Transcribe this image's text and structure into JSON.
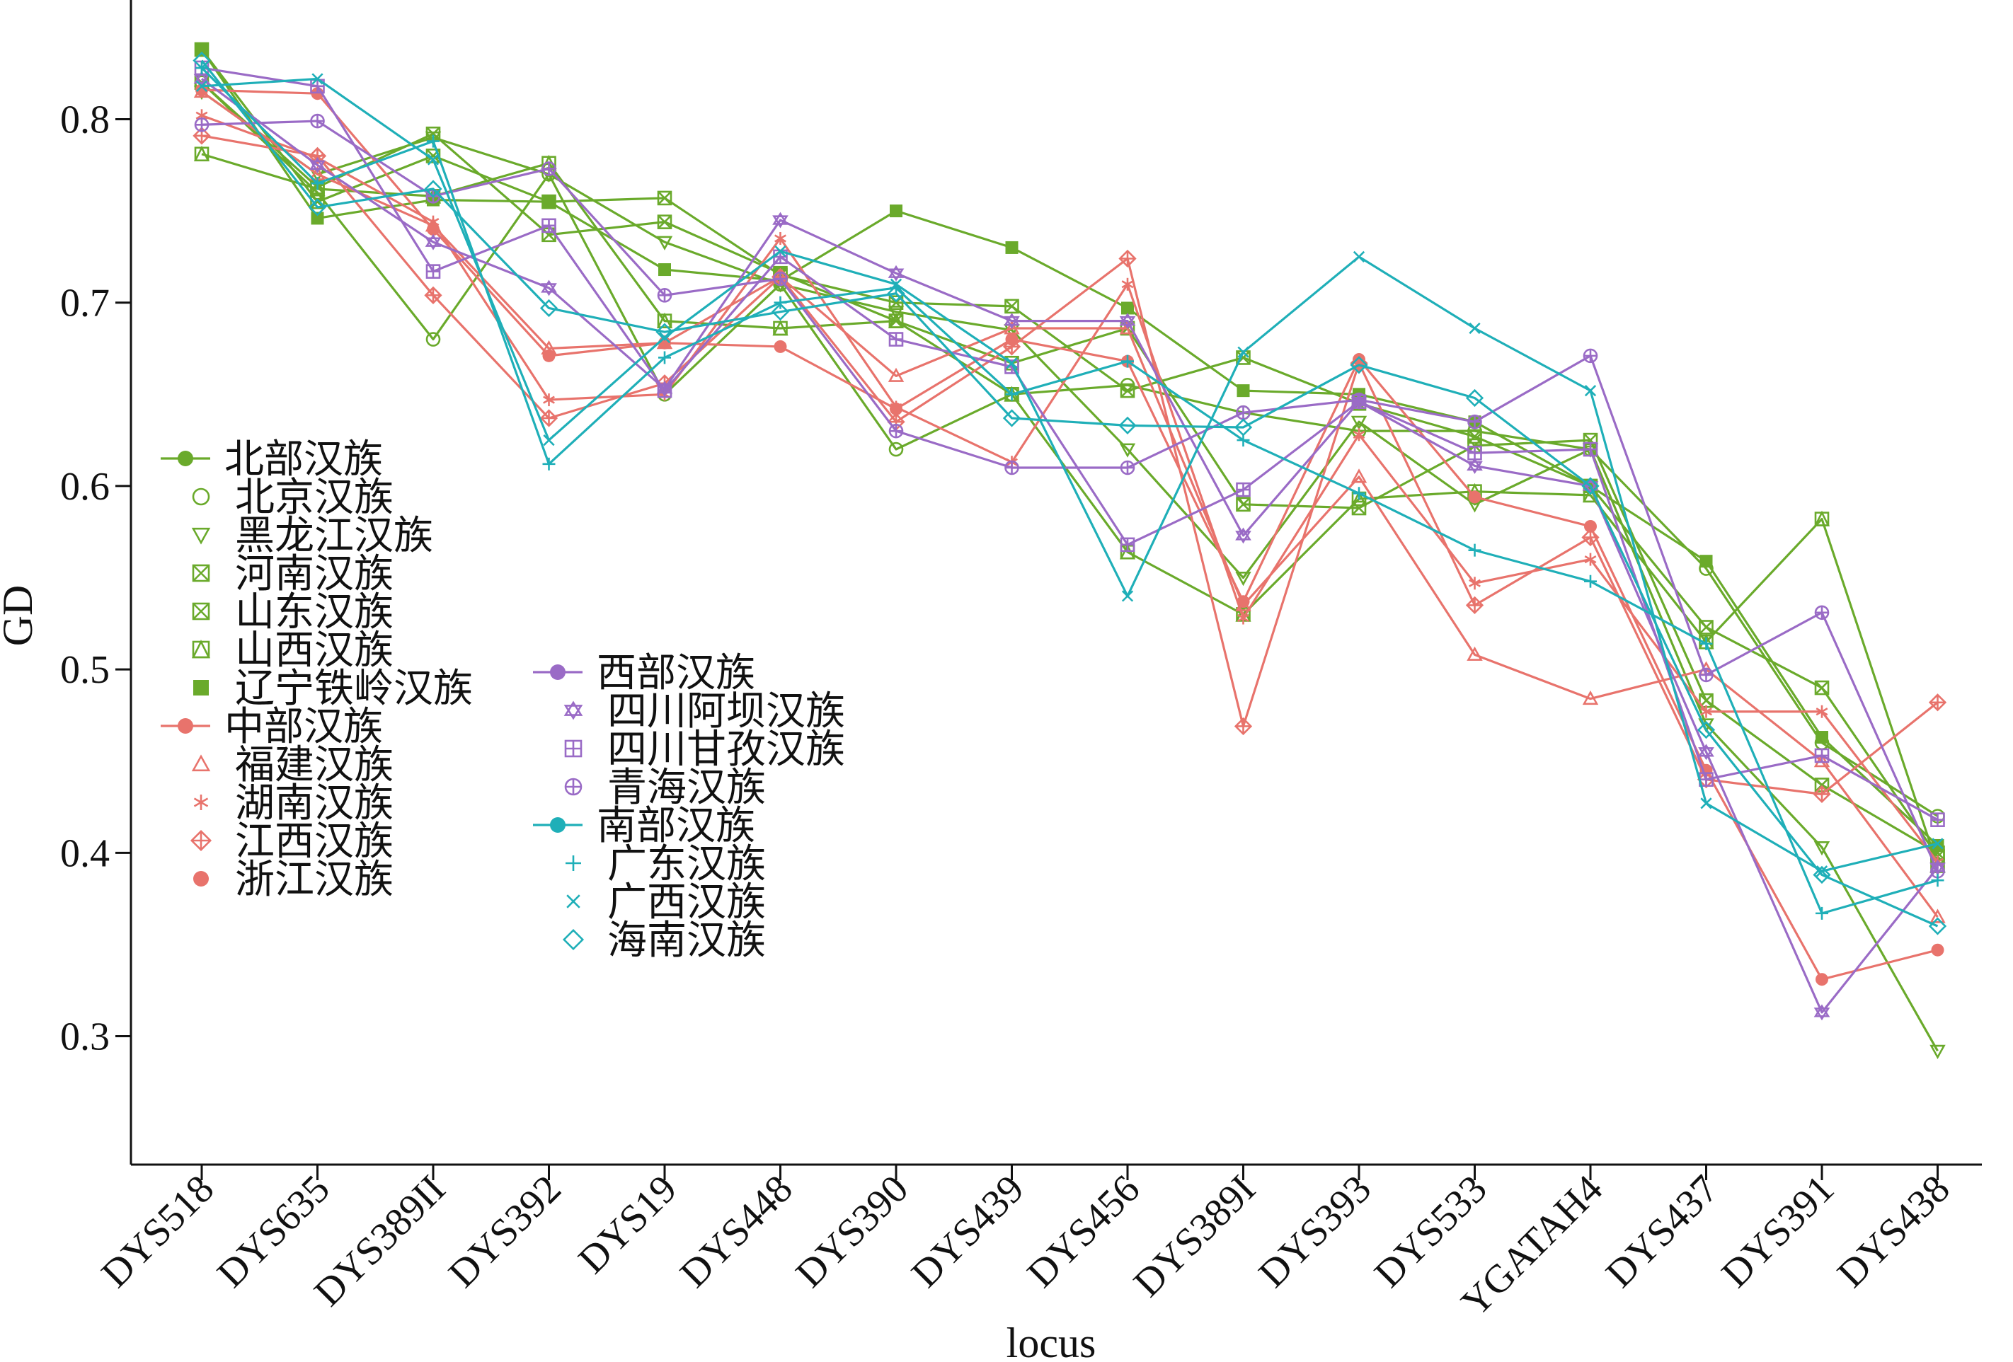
{
  "chart_data": {
    "type": "line",
    "xlabel": "locus",
    "ylabel": "GD",
    "ylim": [
      0.23,
      0.865
    ],
    "yticks": [
      "0.3",
      "0.4",
      "0.5",
      "0.6",
      "0.7",
      "0.8"
    ],
    "categories": [
      "DYS518",
      "DYS635",
      "DYS389II",
      "DYS392",
      "DYS19",
      "DYS448",
      "DYS390",
      "DYS439",
      "DYS456",
      "DYS389I",
      "DYS393",
      "DYS533",
      "YGATAH4",
      "DYS437",
      "DYS391",
      "DYS438"
    ],
    "groups": [
      {
        "name": "北部汉族",
        "color": "#6aaa2b",
        "entries": [
          {
            "name": "北京汉族",
            "marker": "circle-open",
            "values": [
              0.82,
              0.76,
              0.68,
              0.77,
              0.65,
              0.71,
              0.62,
              0.65,
              0.655,
              0.64,
              0.63,
              0.63,
              0.62,
              0.555,
              0.46,
              0.42
            ]
          },
          {
            "name": "黑龙江汉族",
            "marker": "triangle-down",
            "values": [
              0.815,
              0.77,
              0.79,
              0.77,
              0.733,
              0.71,
              0.695,
              0.685,
              0.62,
              0.55,
              0.635,
              0.59,
              0.62,
              0.47,
              0.403,
              0.292
            ]
          },
          {
            "name": "河南汉族",
            "marker": "square-x",
            "values": [
              0.838,
              0.755,
              0.78,
              0.755,
              0.757,
              0.715,
              0.7,
              0.698,
              0.652,
              0.67,
              0.645,
              0.627,
              0.6,
              0.523,
              0.49,
              0.398
            ]
          },
          {
            "name": "山东汉族",
            "marker": "square-x",
            "values": [
              0.82,
              0.763,
              0.792,
              0.737,
              0.744,
              0.716,
              0.69,
              0.667,
              0.686,
              0.59,
              0.588,
              0.622,
              0.625,
              0.483,
              0.437,
              0.4
            ]
          },
          {
            "name": "山西汉族",
            "marker": "square-tri",
            "values": [
              0.781,
              0.762,
              0.758,
              0.776,
              0.69,
              0.686,
              0.69,
              0.65,
              0.564,
              0.53,
              0.593,
              0.597,
              0.595,
              0.515,
              0.582,
              0.393
            ]
          },
          {
            "name": "辽宁铁岭汉族",
            "marker": "square-filled",
            "values": [
              0.838,
              0.746,
              0.756,
              0.755,
              0.718,
              0.712,
              0.75,
              0.73,
              0.697,
              0.652,
              0.65,
              0.635,
              0.6,
              0.559,
              0.463,
              0.404
            ]
          }
        ]
      },
      {
        "name": "中部汉族",
        "color": "#e8736c",
        "entries": [
          {
            "name": "福建汉族",
            "marker": "triangle-up",
            "values": [
              0.815,
              0.77,
              0.742,
              0.675,
              0.678,
              0.714,
              0.66,
              0.686,
              0.686,
              0.535,
              0.605,
              0.508,
              0.484,
              0.5,
              0.45,
              0.365
            ]
          },
          {
            "name": "湖南汉族",
            "marker": "asterisk",
            "values": [
              0.802,
              0.779,
              0.744,
              0.647,
              0.65,
              0.735,
              0.643,
              0.613,
              0.71,
              0.528,
              0.628,
              0.547,
              0.56,
              0.477,
              0.477,
              0.395
            ]
          },
          {
            "name": "江西汉族",
            "marker": "diamond-cross",
            "values": [
              0.791,
              0.78,
              0.704,
              0.637,
              0.656,
              0.714,
              0.635,
              0.676,
              0.724,
              0.469,
              0.667,
              0.535,
              0.572,
              0.44,
              0.432,
              0.482
            ]
          },
          {
            "name": "浙江汉族",
            "marker": "circle-filled",
            "values": [
              0.816,
              0.814,
              0.74,
              0.671,
              0.678,
              0.676,
              0.642,
              0.68,
              0.668,
              0.537,
              0.669,
              0.594,
              0.578,
              0.445,
              0.331,
              0.347
            ]
          }
        ]
      },
      {
        "name": "西部汉族",
        "color": "#9a6bc6",
        "entries": [
          {
            "name": "四川阿坝汉族",
            "marker": "star",
            "values": [
              0.822,
              0.775,
              0.733,
              0.708,
              0.653,
              0.745,
              0.716,
              0.69,
              0.69,
              0.573,
              0.646,
              0.611,
              0.6,
              0.455,
              0.313,
              0.392
            ]
          },
          {
            "name": "四川甘孜汉族",
            "marker": "square-plus",
            "values": [
              0.828,
              0.818,
              0.717,
              0.742,
              0.652,
              0.725,
              0.68,
              0.665,
              0.568,
              0.598,
              0.646,
              0.618,
              0.62,
              0.44,
              0.453,
              0.418
            ]
          },
          {
            "name": "青海汉族",
            "marker": "circle-plus",
            "values": [
              0.797,
              0.799,
              0.758,
              0.773,
              0.704,
              0.713,
              0.63,
              0.61,
              0.61,
              0.64,
              0.647,
              0.635,
              0.671,
              0.497,
              0.531,
              0.39
            ]
          }
        ]
      },
      {
        "name": "南部汉族",
        "color": "#1fafb8",
        "entries": [
          {
            "name": "广东汉族",
            "marker": "plus",
            "values": [
              0.828,
              0.765,
              0.788,
              0.612,
              0.67,
              0.7,
              0.708,
              0.65,
              0.668,
              0.625,
              0.596,
              0.565,
              0.548,
              0.514,
              0.367,
              0.385
            ]
          },
          {
            "name": "广西汉族",
            "marker": "cross",
            "values": [
              0.818,
              0.822,
              0.778,
              0.625,
              0.681,
              0.728,
              0.71,
              0.667,
              0.54,
              0.673,
              0.725,
              0.686,
              0.652,
              0.427,
              0.39,
              0.405
            ]
          },
          {
            "name": "海南汉族",
            "marker": "diamond",
            "values": [
              0.832,
              0.752,
              0.762,
              0.697,
              0.684,
              0.695,
              0.705,
              0.637,
              0.633,
              0.632,
              0.666,
              0.648,
              0.6,
              0.467,
              0.388,
              0.36
            ]
          }
        ]
      }
    ],
    "legend_placement": "left, two columns inside plot"
  }
}
